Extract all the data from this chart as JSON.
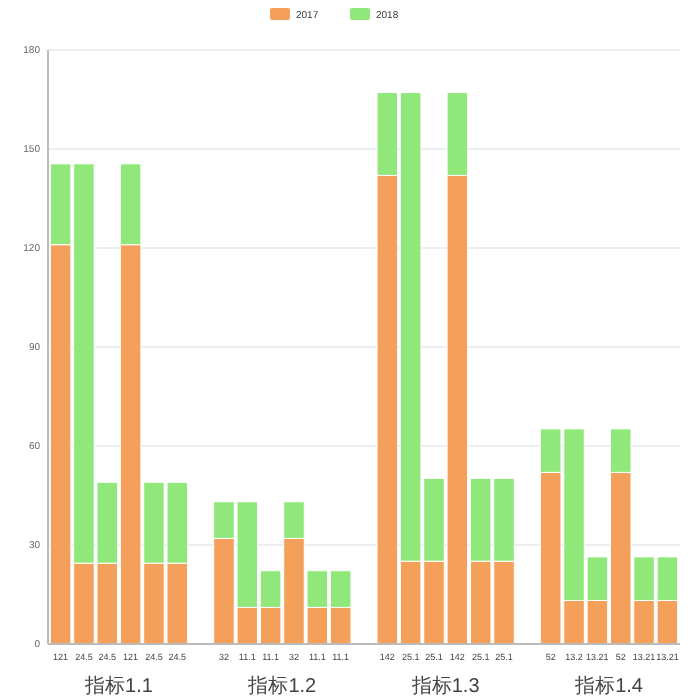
{
  "chart_data": {
    "type": "bar",
    "stacked": true,
    "categories": [
      "121",
      "24.5",
      "24.5",
      "121",
      "24.5",
      "24.5",
      null,
      "32",
      "11.1",
      "11.1",
      "32",
      "11.1",
      "11.1",
      null,
      "142",
      "25.1",
      "25.1",
      "142",
      "25.1",
      "25.1",
      null,
      "52",
      "13.2",
      "13.21",
      "52",
      "13.21",
      "13.21"
    ],
    "series": [
      {
        "name": "2017",
        "color": "#f5a05a",
        "values": [
          121,
          24.5,
          24.5,
          121,
          24.5,
          24.5,
          null,
          32,
          11.1,
          11.1,
          32,
          11.1,
          11.1,
          null,
          142,
          25.1,
          25.1,
          142,
          25.1,
          25.1,
          null,
          52,
          13.2,
          13.2,
          52,
          13.2,
          13.2
        ]
      },
      {
        "name": "2018",
        "color": "#90e87a",
        "values": [
          24.5,
          121,
          24.5,
          24.5,
          24.5,
          24.5,
          null,
          11.1,
          32,
          11.1,
          11.1,
          11.1,
          11.1,
          null,
          25.1,
          142,
          25.1,
          25.1,
          25.1,
          25.1,
          null,
          13.2,
          52,
          13.2,
          13.2,
          13.2,
          13.2
        ]
      }
    ],
    "ylim": [
      0,
      180
    ],
    "yticks": [
      0,
      30,
      60,
      90,
      120,
      150,
      180
    ],
    "grid": "y",
    "legend": "top",
    "annotations": [
      "指标1.1",
      "指标1.2",
      "指标1.3",
      "指标1.4"
    ]
  }
}
